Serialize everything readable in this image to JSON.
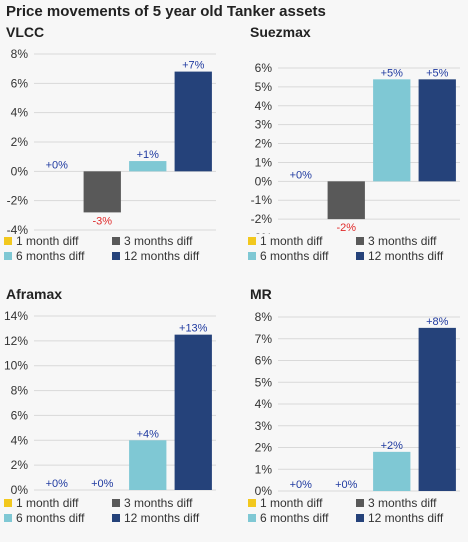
{
  "title": "Price movements of 5 year old Tanker assets",
  "colors": {
    "1 month diff": "#f2c81e",
    "3 months diff": "#595959",
    "6 months diff": "#7fc8d4",
    "12 months diff": "#25427a",
    "label_pos": "#1f3aa0",
    "label_neg": "#e02a2a",
    "grid": "#d9d9d9"
  },
  "chart_data": [
    {
      "type": "bar",
      "title": "VLCC",
      "categories": [
        "1 month diff",
        "3 months diff",
        "6 months diff",
        "12 months diff"
      ],
      "values": [
        0,
        -2.8,
        0.7,
        6.8
      ],
      "data_labels": [
        "+0%",
        "-3%",
        "+1%",
        "+7%"
      ],
      "ylim": [
        -4,
        8
      ],
      "yticks": [
        8,
        6,
        4,
        2,
        0,
        -2,
        -4
      ],
      "ytick_labels": [
        "8%",
        "6%",
        "4%",
        "2%",
        "0%",
        "-2%",
        "-4%"
      ],
      "legend_position": "bottom",
      "grid": true
    },
    {
      "type": "bar",
      "title": "Suezmax",
      "categories": [
        "1 month diff",
        "3 months diff",
        "6 months diff",
        "12 months diff"
      ],
      "values": [
        0,
        -2.0,
        5.4,
        5.4
      ],
      "data_labels": [
        "+0%",
        "-2%",
        "+5%",
        "+5%"
      ],
      "ylim": [
        -3,
        6
      ],
      "yticks": [
        6,
        5,
        4,
        3,
        2,
        1,
        0,
        -1,
        -2,
        -3
      ],
      "ytick_labels": [
        "6%",
        "5%",
        "4%",
        "3%",
        "2%",
        "1%",
        "0%",
        "-1%",
        "-2%",
        "-3%"
      ],
      "legend_position": "bottom",
      "grid": true
    },
    {
      "type": "bar",
      "title": "Aframax",
      "categories": [
        "1 month diff",
        "3 months diff",
        "6 months diff",
        "12 months diff"
      ],
      "values": [
        0,
        0,
        4.0,
        12.5
      ],
      "data_labels": [
        "+0%",
        "+0%",
        "+4%",
        "+13%"
      ],
      "ylim": [
        0,
        14
      ],
      "yticks": [
        14,
        12,
        10,
        8,
        6,
        4,
        2,
        0
      ],
      "ytick_labels": [
        "14%",
        "12%",
        "10%",
        "8%",
        "6%",
        "4%",
        "2%",
        "0%"
      ],
      "legend_position": "bottom",
      "grid": true
    },
    {
      "type": "bar",
      "title": "MR",
      "categories": [
        "1 month diff",
        "3 months diff",
        "6 months diff",
        "12 months diff"
      ],
      "values": [
        0,
        0,
        1.8,
        7.5
      ],
      "data_labels": [
        "+0%",
        "+0%",
        "+2%",
        "+8%"
      ],
      "ylim": [
        0,
        8
      ],
      "yticks": [
        8,
        7,
        6,
        5,
        4,
        3,
        2,
        1,
        0
      ],
      "ytick_labels": [
        "8%",
        "7%",
        "6%",
        "5%",
        "4%",
        "3%",
        "2%",
        "1%",
        "0%"
      ],
      "legend_position": "bottom",
      "grid": true
    }
  ]
}
